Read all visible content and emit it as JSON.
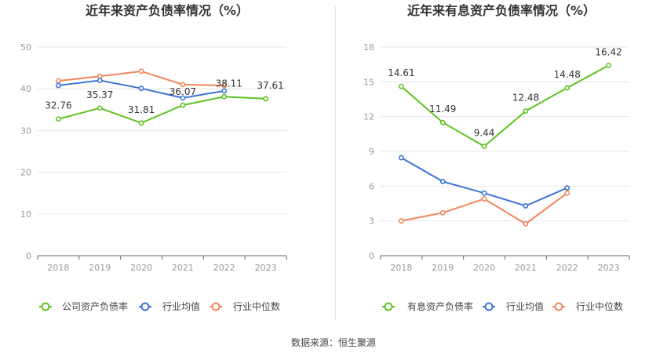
{
  "source": "数据来源：恒生聚源",
  "colors": {
    "green": "#5cc321",
    "blue": "#3c74d6",
    "orange": "#f0865a",
    "grid": "#e4e4ee",
    "axis": "#666666"
  },
  "chart_data": [
    {
      "type": "line",
      "title": "近年来资产负债率情况（%）",
      "categories": [
        "2018",
        "2019",
        "2020",
        "2021",
        "2022",
        "2023"
      ],
      "ylim": [
        0,
        50
      ],
      "yticks": [
        0,
        10,
        20,
        30,
        40,
        50
      ],
      "series": [
        {
          "name": "公司资产负债率",
          "color": "green",
          "values": [
            32.76,
            35.37,
            31.81,
            36.07,
            38.11,
            37.61
          ],
          "labels": [
            "32.76",
            "35.37",
            "31.81",
            "36.07",
            "38.11",
            "37.61"
          ]
        },
        {
          "name": "行业均值",
          "color": "blue",
          "values": [
            40.8,
            42.0,
            40.1,
            37.8,
            39.5,
            null
          ]
        },
        {
          "name": "行业中位数",
          "color": "orange",
          "values": [
            41.9,
            43.0,
            44.2,
            41.0,
            40.8,
            null
          ]
        }
      ]
    },
    {
      "type": "line",
      "title": "近年来有息资产负债率情况（%）",
      "categories": [
        "2018",
        "2019",
        "2020",
        "2021",
        "2022",
        "2023"
      ],
      "ylim": [
        0,
        18
      ],
      "yticks": [
        0,
        3,
        6,
        9,
        12,
        15,
        18
      ],
      "series": [
        {
          "name": "有息资产负债率",
          "color": "green",
          "values": [
            14.61,
            11.49,
            9.44,
            12.48,
            14.48,
            16.42
          ],
          "labels": [
            "14.61",
            "11.49",
            "9.44",
            "12.48",
            "14.48",
            "16.42"
          ]
        },
        {
          "name": "行业均值",
          "color": "blue",
          "values": [
            8.45,
            6.4,
            5.4,
            4.3,
            5.85,
            null
          ]
        },
        {
          "name": "行业中位数",
          "color": "orange",
          "values": [
            3.0,
            3.7,
            4.9,
            2.75,
            5.4,
            null
          ]
        }
      ]
    }
  ]
}
